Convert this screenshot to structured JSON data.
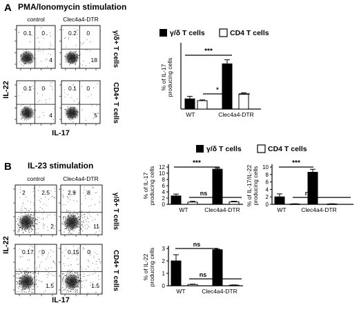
{
  "panelA": {
    "letter": "A",
    "title": "PMA/Ionomycin stimulation",
    "col_labels": [
      "control",
      "Clec4a4-DTR"
    ],
    "row_labels": [
      "γ/δ+ T cells",
      "CD4+ T cells"
    ],
    "y_axis": "IL-22",
    "x_axis": "IL-17",
    "quadrants": [
      {
        "row": 0,
        "col": 0,
        "ul": "0.1",
        "ur": "0",
        "lr": "4"
      },
      {
        "row": 0,
        "col": 1,
        "ul": "0.2",
        "ur": "0",
        "lr": "18"
      },
      {
        "row": 1,
        "col": 0,
        "ul": "0.1",
        "ur": "0",
        "lr": "4"
      },
      {
        "row": 1,
        "col": 1,
        "ul": "0.1",
        "ur": "0",
        "lr": "5"
      }
    ]
  },
  "panelB": {
    "letter": "B",
    "title": "IL-23 stimulation",
    "col_labels": [
      "control",
      "Clec4a4-DTR"
    ],
    "row_labels": [
      "γ/δ+ T cells",
      "CD4+ T cells"
    ],
    "y_axis": "IL-22",
    "x_axis": "IL-17",
    "quadrants": [
      {
        "row": 0,
        "col": 0,
        "ul": "2",
        "ur": "2.5",
        "lr": "2"
      },
      {
        "row": 0,
        "col": 1,
        "ul": "2.9",
        "ur": "8",
        "lr": "11"
      },
      {
        "row": 1,
        "col": 0,
        "ul": "0.17",
        "ur": "0",
        "lr": "1.5"
      },
      {
        "row": 1,
        "col": 1,
        "ul": "0.15",
        "ur": "0",
        "lr": "1.5"
      }
    ]
  },
  "legend": {
    "series": [
      "γ/δ T cells",
      "CD4 T cells"
    ],
    "colors": [
      "#000000",
      "#ffffff"
    ]
  },
  "chart_data": [
    {
      "type": "bar",
      "panel": "A",
      "categories": [
        "WT",
        "Clec4a4-DTR"
      ],
      "series": [
        {
          "name": "γ/δ T cells",
          "values": [
            4.0,
            17.8
          ],
          "errors": [
            1.0,
            1.6
          ]
        },
        {
          "name": "CD4 T cells",
          "values": [
            3.3,
            5.8
          ],
          "errors": [
            0.3,
            0.6
          ]
        }
      ],
      "ylabel": "% of IL-17 producing cells",
      "ylim": [
        0,
        25
      ],
      "significance": [
        {
          "label": "***",
          "between": [
            "WT γ/δ T cells",
            "Clec4a4-DTR γ/δ T cells"
          ]
        },
        {
          "label": "*",
          "between": [
            "WT CD4 T cells",
            "Clec4a4-DTR CD4 T cells"
          ]
        }
      ]
    },
    {
      "type": "bar",
      "panel": "B",
      "categories": [
        "WT",
        "Clec4a4-DTR"
      ],
      "series": [
        {
          "name": "γ/δ T cells",
          "values": [
            2.7,
            11.3
          ],
          "errors": [
            0.6,
            0.4
          ]
        },
        {
          "name": "CD4 T cells",
          "values": [
            0.7,
            0.8
          ],
          "errors": [
            0.3,
            0.2
          ]
        }
      ],
      "ylabel": "% of IL-17 producing cells",
      "yticks": [
        0,
        2,
        4,
        6,
        8,
        10,
        12
      ],
      "ylim": [
        0,
        12
      ],
      "significance": [
        {
          "label": "***",
          "between": [
            "WT γ/δ T cells",
            "Clec4a4-DTR γ/δ T cells"
          ]
        },
        {
          "label": "ns",
          "between": [
            "WT CD4 T cells",
            "Clec4a4-DTR CD4 T cells"
          ]
        }
      ]
    },
    {
      "type": "bar",
      "panel": "B",
      "categories": [
        "WT",
        "Clec4a4-DTR"
      ],
      "series": [
        {
          "name": "γ/δ T cells",
          "values": [
            2.0,
            8.6
          ],
          "errors": [
            0.8,
            0.8
          ]
        },
        {
          "name": "CD4 T cells",
          "values": [
            0.1,
            0.1
          ],
          "errors": [
            0.05,
            0.05
          ]
        }
      ],
      "ylabel": "% of IL-17/IL-22 producing cells",
      "yticks": [
        0,
        2,
        4,
        6,
        8,
        10
      ],
      "ylim": [
        0,
        10
      ],
      "significance": [
        {
          "label": "***",
          "between": [
            "WT γ/δ T cells",
            "Clec4a4-DTR γ/δ T cells"
          ]
        },
        {
          "label": "ns",
          "between": [
            "WT CD4 T cells",
            "Clec4a4-DTR CD4 T cells"
          ]
        }
      ]
    },
    {
      "type": "bar",
      "panel": "B",
      "categories": [
        "WT",
        "Clec4a4-DTR"
      ],
      "series": [
        {
          "name": "γ/δ T cells",
          "values": [
            2.0,
            2.9
          ],
          "errors": [
            0.5,
            0.05
          ]
        },
        {
          "name": "CD4 T cells",
          "values": [
            0.1,
            0.05
          ],
          "errors": [
            0.03,
            0.02
          ]
        }
      ],
      "ylabel": "% of IL-22 producing cells",
      "yticks": [
        0,
        1,
        2,
        3
      ],
      "ylim": [
        0,
        3
      ],
      "significance": [
        {
          "label": "ns",
          "between": [
            "WT γ/δ T cells",
            "Clec4a4-DTR γ/δ T cells"
          ]
        },
        {
          "label": "ns",
          "between": [
            "WT CD4 T cells",
            "Clec4a4-DTR CD4 T cells"
          ]
        }
      ]
    }
  ]
}
